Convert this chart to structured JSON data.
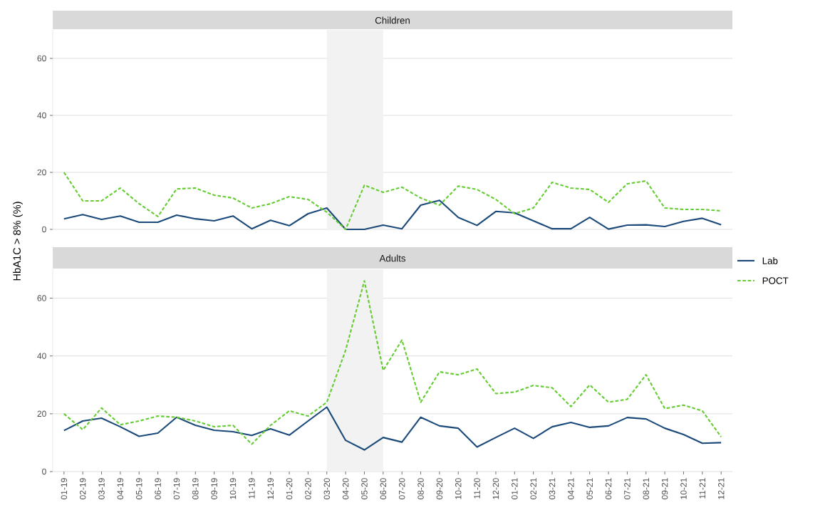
{
  "chart_data": [
    {
      "type": "line",
      "title": "Children",
      "ylabel": "HbA1C > 8% (%)",
      "categories": [
        "01-19",
        "02-19",
        "03-19",
        "04-19",
        "05-19",
        "06-19",
        "07-19",
        "08-19",
        "09-19",
        "10-19",
        "11-19",
        "12-19",
        "01-20",
        "02-20",
        "03-20",
        "04-20",
        "05-20",
        "06-20",
        "07-20",
        "08-20",
        "09-20",
        "10-20",
        "11-20",
        "12-20",
        "01-21",
        "02-21",
        "03-21",
        "04-21",
        "05-21",
        "06-21",
        "07-21",
        "08-21",
        "09-21",
        "10-21",
        "11-21",
        "12-21"
      ],
      "series": [
        {
          "name": "Lab",
          "color": "#1b4a7a",
          "line_style": "solid",
          "values": [
            3.7,
            5.2,
            3.5,
            4.7,
            2.5,
            2.5,
            5,
            3.7,
            3,
            4.7,
            0.2,
            3.2,
            1.3,
            5.5,
            7.5,
            0,
            0,
            1.5,
            0.2,
            8.5,
            10.2,
            4.2,
            1.4,
            6.3,
            5.8,
            3,
            0.2,
            0.2,
            4.2,
            0.1,
            1.5,
            1.6,
            1,
            2.8,
            3.9,
            1.6
          ]
        },
        {
          "name": "POCT",
          "color": "#66cc33",
          "line_style": "dashed",
          "values": [
            20,
            10,
            10,
            14.5,
            9,
            4.5,
            14.2,
            14.5,
            12,
            11,
            7.5,
            9,
            11.5,
            10.5,
            6,
            0,
            15.5,
            13,
            14.8,
            11,
            8.5,
            15.2,
            14,
            10.5,
            5.5,
            7.5,
            16.5,
            14.5,
            14,
            9.5,
            16,
            17,
            7.5,
            7,
            7,
            6.5
          ]
        }
      ],
      "bands": [
        {
          "axis": "x",
          "from": "03-20",
          "to": "06-20",
          "color": "#f2f2f2"
        }
      ],
      "ylim": [
        0,
        70
      ],
      "yticks": [
        0,
        20,
        40,
        60
      ],
      "grid": "y",
      "tick_labels": "y",
      "legend": "right"
    },
    {
      "type": "line",
      "title": "Adults",
      "categories": [
        "01-19",
        "02-19",
        "03-19",
        "04-19",
        "05-19",
        "06-19",
        "07-19",
        "08-19",
        "09-19",
        "10-19",
        "11-19",
        "12-19",
        "01-20",
        "02-20",
        "03-20",
        "04-20",
        "05-20",
        "06-20",
        "07-20",
        "08-20",
        "09-20",
        "10-20",
        "11-20",
        "12-20",
        "01-21",
        "02-21",
        "03-21",
        "04-21",
        "05-21",
        "06-21",
        "07-21",
        "08-21",
        "09-21",
        "10-21",
        "11-21",
        "12-21"
      ],
      "series": [
        {
          "color": "#1b4a7a",
          "line_style": "solid",
          "values": [
            14.2,
            17.5,
            18.5,
            15.5,
            12.2,
            13.3,
            18.8,
            16,
            14.3,
            13.8,
            12.5,
            14.8,
            12.6,
            17.5,
            22.3,
            10.8,
            7.5,
            11.8,
            10.2,
            18.8,
            15.8,
            15,
            8.5,
            11.8,
            15,
            11.5,
            15.5,
            17,
            15.3,
            15.8,
            18.7,
            18.2,
            15,
            12.8,
            9.8,
            10
          ]
        },
        {
          "color": "#66cc33",
          "line_style": "dashed",
          "values": [
            20,
            14.5,
            22,
            16.2,
            17.5,
            19.2,
            18.8,
            17.5,
            15.5,
            16,
            9.5,
            16,
            21,
            19.2,
            24,
            42,
            66,
            35,
            45.5,
            24,
            34.5,
            33.5,
            35.5,
            27,
            27.5,
            29.8,
            29,
            22.5,
            30,
            24,
            25,
            33.5,
            21.8,
            23,
            21,
            12
          ]
        }
      ],
      "bands": [
        {
          "axis": "x",
          "from": "03-20",
          "to": "06-20",
          "color": "#f2f2f2"
        }
      ],
      "ylim": [
        0,
        70
      ],
      "yticks": [
        0,
        20,
        40,
        60
      ],
      "grid": "y"
    }
  ]
}
